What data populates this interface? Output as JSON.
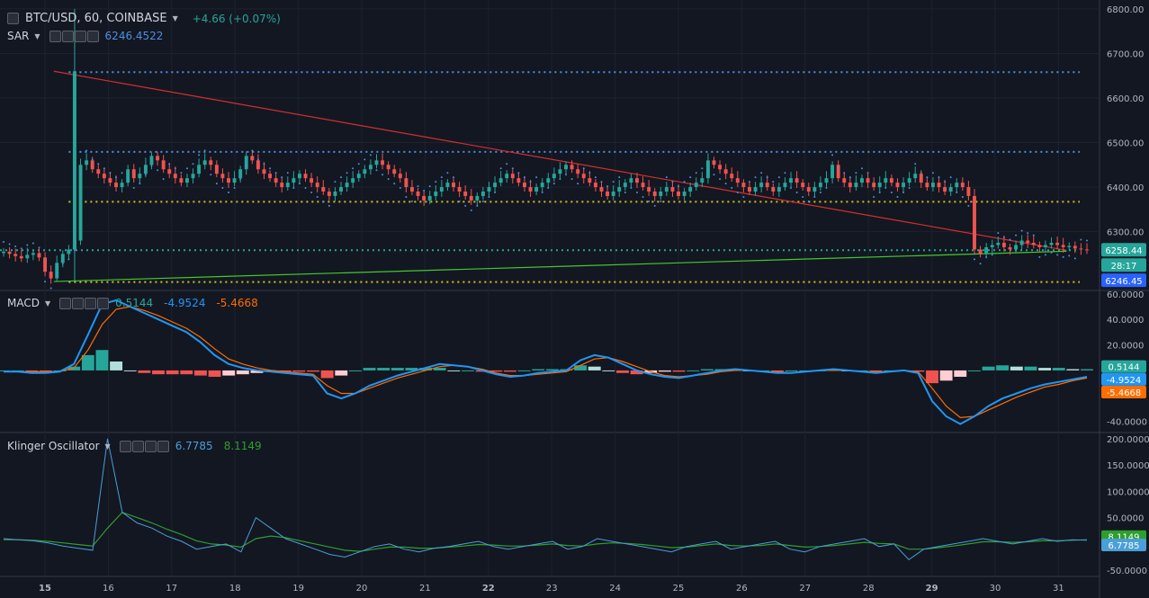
{
  "header": {
    "symbol": "BTC/USD, 60, COINBASE",
    "change": "+4.66 (+0.07%)"
  },
  "sar_legend": {
    "name": "SAR",
    "value": "6246.4522"
  },
  "macd_legend": {
    "name": "MACD",
    "hist": "0.5144",
    "macd": "-4.9524",
    "signal": "-5.4668"
  },
  "kvo_legend": {
    "name": "Klinger Oscillator",
    "kvo": "6.7785",
    "signal": "8.1149"
  },
  "price_badges": {
    "last": "6258.44",
    "countdown": "28:17",
    "sar": "6246.45"
  },
  "macd_badges": {
    "hist": "0.5144",
    "macd": "-4.9524",
    "signal": "-5.4668"
  },
  "kvo_badges": {
    "signal": "8.1149",
    "kvo": "6.7785"
  },
  "colors": {
    "up": "#26a69a",
    "down": "#ef5350",
    "sar": "#4a90e2",
    "macd": "#2196f3",
    "signal": "#ff6d00",
    "kvo": "#4a9fd8",
    "kvo_signal": "#2e9e2e",
    "trend_red": "#d32f2f",
    "trend_green": "#43c92c",
    "hline_blue": "#4a90e2",
    "hline_yellow": "#d4c21a"
  },
  "chart_data": [
    {
      "type": "candlestick",
      "title": "BTC/USD, 60, COINBASE",
      "x_axis": {
        "labels": [
          "15",
          "16",
          "17",
          "18",
          "19",
          "20",
          "21",
          "22",
          "23",
          "24",
          "25",
          "26",
          "27",
          "28",
          "29",
          "30",
          "31"
        ]
      },
      "y_axis": {
        "ticks": [
          "6800.00",
          "6700.00",
          "6600.00",
          "6500.00",
          "6400.00",
          "6300.00"
        ],
        "range": [
          6170,
          6820
        ]
      },
      "close": [
        6255,
        6250,
        6245,
        6240,
        6248,
        6252,
        6242,
        6210,
        6195,
        6230,
        6250,
        6260,
        6280,
        6450,
        6460,
        6440,
        6430,
        6420,
        6410,
        6400,
        6410,
        6440,
        6420,
        6430,
        6450,
        6470,
        6460,
        6440,
        6430,
        6420,
        6410,
        6420,
        6430,
        6450,
        6460,
        6450,
        6430,
        6420,
        6410,
        6420,
        6440,
        6470,
        6460,
        6440,
        6430,
        6420,
        6410,
        6400,
        6410,
        6420,
        6430,
        6420,
        6410,
        6400,
        6390,
        6380,
        6390,
        6400,
        6410,
        6420,
        6430,
        6440,
        6450,
        6460,
        6450,
        6440,
        6430,
        6420,
        6400,
        6390,
        6380,
        6370,
        6380,
        6390,
        6400,
        6410,
        6400,
        6390,
        6380,
        6370,
        6380,
        6390,
        6400,
        6410,
        6420,
        6430,
        6420,
        6410,
        6400,
        6390,
        6400,
        6410,
        6420,
        6430,
        6440,
        6450,
        6440,
        6430,
        6420,
        6410,
        6400,
        6390,
        6380,
        6390,
        6400,
        6410,
        6420,
        6410,
        6400,
        6390,
        6380,
        6390,
        6400,
        6390,
        6380,
        6390,
        6400,
        6410,
        6420,
        6460,
        6450,
        6440,
        6430,
        6420,
        6410,
        6400,
        6390,
        6400,
        6410,
        6400,
        6390,
        6400,
        6410,
        6420,
        6410,
        6400,
        6390,
        6400,
        6410,
        6420,
        6450,
        6420,
        6410,
        6400,
        6410,
        6420,
        6410,
        6400,
        6410,
        6420,
        6410,
        6400,
        6410,
        6420,
        6430,
        6410,
        6400,
        6410,
        6400,
        6390,
        6400,
        6410,
        6400,
        6380,
        6260,
        6250,
        6265,
        6270,
        6275,
        6265,
        6260,
        6270,
        6280,
        6275,
        6270,
        6265,
        6270,
        6275,
        6270,
        6265,
        6268,
        6262,
        6260,
        6258
      ],
      "sar_last": 6246.45,
      "horizontal_lines": [
        {
          "price": 6658,
          "style": "dotted",
          "color": "#4a90e2"
        },
        {
          "price": 6479,
          "style": "dotted",
          "color": "#4a90e2"
        },
        {
          "price": 6367,
          "style": "dotted",
          "color": "#d4c21a"
        },
        {
          "price": 6258.44,
          "style": "dotted",
          "color": "#26a69a"
        },
        {
          "price": 6187,
          "style": "dotted",
          "color": "#d4c21a"
        }
      ],
      "trend_lines": [
        {
          "from": [
            0.049,
            6660
          ],
          "to": [
            0.97,
            6258
          ],
          "color": "#d32f2f"
        },
        {
          "from": [
            0.049,
            6188
          ],
          "to": [
            0.97,
            6256
          ],
          "color": "#43c92c"
        }
      ]
    },
    {
      "type": "line",
      "title": "MACD",
      "y_axis": {
        "ticks": [
          "60.0000",
          "40.0000",
          "20.0000",
          "-40.0000"
        ],
        "range": [
          -48,
          62
        ]
      },
      "series": [
        {
          "name": "MACD",
          "values": [
            -1,
            -1,
            -2,
            -2,
            -1,
            5,
            28,
            52,
            55,
            50,
            45,
            40,
            35,
            30,
            22,
            12,
            5,
            2,
            0,
            -1,
            -2,
            -3,
            -4,
            -18,
            -22,
            -18,
            -12,
            -8,
            -4,
            -1,
            2,
            5,
            4,
            3,
            0,
            -3,
            -5,
            -4,
            -2,
            -1,
            0,
            8,
            12,
            10,
            5,
            0,
            -3,
            -5,
            -6,
            -4,
            -2,
            0,
            1,
            0,
            -1,
            -2,
            -2,
            -1,
            0,
            1,
            0,
            -1,
            -2,
            -1,
            0,
            -2,
            -24,
            -36,
            -42,
            -36,
            -28,
            -22,
            -18,
            -14,
            -11,
            -9,
            -7,
            -5
          ]
        },
        {
          "name": "Signal",
          "values": [
            -1,
            -1,
            -1,
            -1,
            -1,
            2,
            16,
            36,
            48,
            50,
            47,
            43,
            38,
            33,
            26,
            17,
            9,
            5,
            2,
            0,
            -1,
            -2,
            -3,
            -12,
            -18,
            -18,
            -14,
            -10,
            -6,
            -3,
            0,
            3,
            4,
            3,
            1,
            -2,
            -4,
            -4,
            -3,
            -2,
            -1,
            4,
            9,
            10,
            7,
            3,
            -1,
            -4,
            -5,
            -4,
            -3,
            -1,
            0,
            0,
            -1,
            -1,
            -2,
            -1,
            0,
            0,
            0,
            -1,
            -1,
            -1,
            0,
            -1,
            -14,
            -28,
            -37,
            -36,
            -31,
            -26,
            -21,
            -17,
            -13,
            -11,
            -8,
            -6
          ]
        }
      ]
    },
    {
      "type": "line",
      "title": "Klinger Oscillator",
      "y_axis": {
        "ticks": [
          "200.0000",
          "150.0000",
          "100.0000",
          "50.0000",
          "-50.0000"
        ],
        "range": [
          -60,
          210
        ]
      },
      "series": [
        {
          "name": "KVO",
          "values": [
            10,
            8,
            6,
            2,
            -4,
            -8,
            -12,
            200,
            60,
            40,
            30,
            15,
            5,
            -10,
            -5,
            0,
            -15,
            50,
            30,
            10,
            0,
            -10,
            -20,
            -25,
            -15,
            -5,
            0,
            -10,
            -15,
            -8,
            -5,
            0,
            5,
            -5,
            -10,
            -5,
            0,
            5,
            -10,
            -5,
            10,
            5,
            0,
            -5,
            -10,
            -15,
            -5,
            0,
            5,
            -10,
            -5,
            0,
            5,
            -10,
            -15,
            -5,
            0,
            5,
            10,
            -5,
            0,
            -30,
            -10,
            -5,
            0,
            5,
            10,
            5,
            0,
            5,
            10,
            5,
            8,
            7
          ]
        },
        {
          "name": "Signal",
          "values": [
            8,
            8,
            7,
            5,
            2,
            -1,
            -4,
            30,
            60,
            50,
            40,
            28,
            18,
            6,
            0,
            -2,
            -6,
            10,
            15,
            12,
            6,
            0,
            -6,
            -12,
            -14,
            -10,
            -6,
            -6,
            -8,
            -8,
            -6,
            -4,
            -1,
            -2,
            -4,
            -4,
            -2,
            0,
            -3,
            -4,
            0,
            2,
            1,
            -1,
            -4,
            -7,
            -6,
            -3,
            0,
            -3,
            -4,
            -3,
            0,
            -3,
            -6,
            -5,
            -3,
            0,
            3,
            1,
            0,
            -10,
            -10,
            -7,
            -4,
            0,
            4,
            4,
            3,
            4,
            6,
            6,
            7,
            8
          ]
        }
      ]
    }
  ]
}
